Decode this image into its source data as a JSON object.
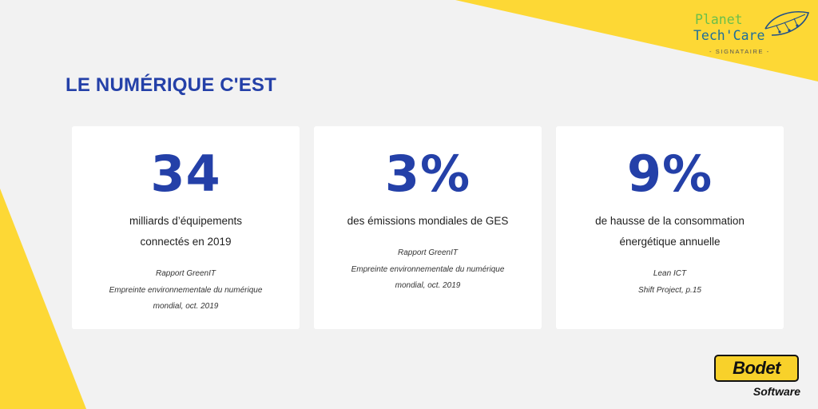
{
  "colors": {
    "background": "#f2f2f2",
    "accent_yellow": "#fdd835",
    "title_blue": "#2440a8",
    "card_background": "#ffffff"
  },
  "header": {
    "title": "LE NUMÉRIQUE C'EST"
  },
  "stats": [
    {
      "value": "34",
      "description_lines": [
        "milliards d’équipements",
        "connectés en 2019"
      ],
      "source_lines": [
        "Rapport GreenIT",
        "Empreinte environnementale du numérique",
        "mondial, oct. 2019"
      ]
    },
    {
      "value": "3%",
      "description_lines": [
        "des émissions mondiales de GES"
      ],
      "source_lines": [
        "Rapport GreenIT",
        "Empreinte environnementale du numérique",
        "mondial, oct. 2019"
      ]
    },
    {
      "value": "9%",
      "description_lines": [
        "de hausse de la consommation",
        "énergétique annuelle"
      ],
      "source_lines": [
        "Lean ICT",
        "Shift Project, p.15"
      ]
    }
  ],
  "logos": {
    "planet": {
      "line1": "Planet",
      "line2": "Tech'Care",
      "tagline": "- SIGNATAIRE -",
      "icon": "leaf-icon"
    },
    "bodet": {
      "name": "Bodet",
      "product": "Software"
    }
  }
}
